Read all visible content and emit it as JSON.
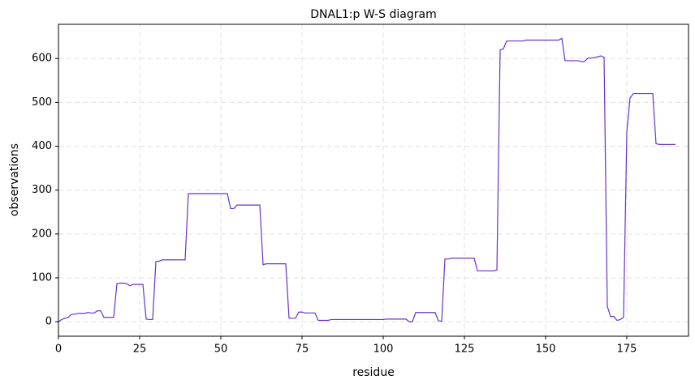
{
  "chart_data": {
    "type": "line",
    "title": "DNAL1:p W-S diagram",
    "x_label": "residue",
    "y_label": "observations",
    "x": [
      0,
      1,
      2,
      3,
      4,
      5,
      6,
      7,
      8,
      9,
      10,
      11,
      12,
      13,
      14,
      15,
      16,
      17,
      18,
      19,
      20,
      21,
      22,
      23,
      24,
      25,
      26,
      27,
      28,
      29,
      30,
      31,
      32,
      33,
      34,
      35,
      36,
      37,
      38,
      39,
      40,
      41,
      42,
      43,
      44,
      45,
      46,
      47,
      48,
      49,
      50,
      51,
      52,
      53,
      54,
      55,
      56,
      57,
      58,
      59,
      60,
      61,
      62,
      63,
      64,
      65,
      66,
      67,
      68,
      69,
      70,
      71,
      72,
      73,
      74,
      75,
      76,
      77,
      78,
      79,
      80,
      81,
      82,
      83,
      84,
      85,
      86,
      87,
      88,
      89,
      90,
      91,
      92,
      93,
      94,
      95,
      96,
      97,
      98,
      99,
      100,
      101,
      102,
      103,
      104,
      105,
      106,
      107,
      108,
      109,
      110,
      111,
      112,
      113,
      114,
      115,
      116,
      117,
      118,
      119,
      120,
      121,
      122,
      123,
      124,
      125,
      126,
      127,
      128,
      129,
      130,
      131,
      132,
      133,
      134,
      135,
      136,
      137,
      138,
      139,
      140,
      141,
      142,
      143,
      144,
      145,
      146,
      147,
      148,
      149,
      150,
      151,
      152,
      153,
      154,
      155,
      156,
      157,
      158,
      159,
      160,
      161,
      162,
      163,
      164,
      165,
      166,
      167,
      168,
      169,
      170,
      171,
      172,
      173,
      174,
      175,
      176,
      177,
      178,
      179,
      180,
      181,
      182,
      183,
      184,
      185,
      186,
      187,
      188,
      189,
      190
    ],
    "series": [
      {
        "name": "observations",
        "color": "#6633cc",
        "values": [
          0,
          5,
          8,
          10,
          17,
          17,
          19,
          19,
          19,
          21,
          20,
          20,
          25,
          25,
          10,
          10,
          10,
          10,
          87,
          88,
          88,
          87,
          82,
          85,
          85,
          85,
          85,
          6,
          5,
          5,
          137,
          138,
          141,
          141,
          141,
          141,
          141,
          141,
          141,
          141,
          292,
          292,
          292,
          292,
          292,
          292,
          292,
          292,
          292,
          292,
          292,
          292,
          292,
          258,
          258,
          266,
          266,
          266,
          266,
          266,
          266,
          266,
          266,
          130,
          132,
          132,
          132,
          132,
          132,
          132,
          132,
          8,
          8,
          8,
          22,
          22,
          20,
          20,
          20,
          20,
          3,
          3,
          3,
          3,
          5,
          5,
          5,
          5,
          5,
          5,
          5,
          5,
          5,
          5,
          5,
          5,
          5,
          5,
          5,
          5,
          5,
          6,
          6,
          6,
          6,
          6,
          6,
          6,
          0,
          0,
          21,
          21,
          21,
          21,
          21,
          21,
          21,
          2,
          1,
          143,
          143,
          145,
          145,
          145,
          145,
          145,
          145,
          145,
          145,
          116,
          116,
          116,
          116,
          116,
          116,
          118,
          620,
          622,
          640,
          640,
          640,
          640,
          640,
          640,
          642,
          642,
          642,
          642,
          642,
          642,
          642,
          642,
          642,
          642,
          642,
          646,
          595,
          595,
          595,
          595,
          595,
          593,
          593,
          601,
          601,
          602,
          604,
          606,
          603,
          35,
          12,
          12,
          3,
          5,
          10,
          432,
          510,
          520,
          520,
          520,
          520,
          520,
          520,
          520,
          406,
          404,
          404,
          404,
          404,
          404,
          404
        ]
      }
    ],
    "xlim": [
      0,
      194
    ],
    "ylim": [
      -33,
      678
    ],
    "xticks": [
      0,
      25,
      50,
      75,
      100,
      125,
      150,
      175
    ],
    "yticks": [
      0,
      100,
      200,
      300,
      400,
      500,
      600
    ],
    "grid": true
  }
}
